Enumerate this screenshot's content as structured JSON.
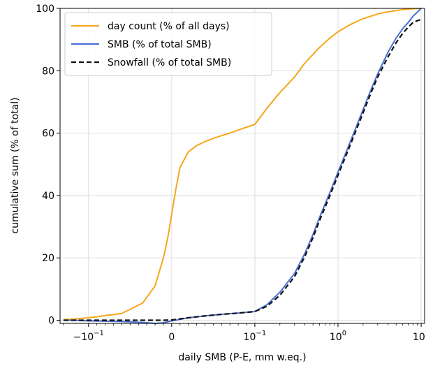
{
  "chart_data": {
    "type": "line",
    "title": "",
    "xlabel": "daily SMB (P-E, mm w.eq.)",
    "ylabel": "cumulative sum (% of total)",
    "x_scale": "symlog",
    "x_linthresh": 0.1,
    "xlim": [
      -0.22,
      11
    ],
    "ylim": [
      -1,
      100
    ],
    "grid": true,
    "legend_position": "top-left",
    "x_ticks": [
      {
        "value": -0.1,
        "base": "−10",
        "exp": "−1"
      },
      {
        "value": 0,
        "base": "0",
        "exp": ""
      },
      {
        "value": 0.1,
        "base": "10",
        "exp": "−1"
      },
      {
        "value": 1,
        "base": "10",
        "exp": "0"
      },
      {
        "value": 10,
        "base": "10",
        "exp": "1"
      }
    ],
    "y_ticks": [
      0,
      20,
      40,
      60,
      80,
      100
    ],
    "series": [
      {
        "name": "day count (% of all days)",
        "color": "#f5a71c",
        "dash": "solid",
        "x": [
          -0.2,
          -0.15,
          -0.1,
          -0.06,
          -0.035,
          -0.02,
          -0.01,
          -0.007,
          -0.004,
          0,
          0.005,
          0.01,
          0.015,
          0.02,
          0.03,
          0.04,
          0.05,
          0.06,
          0.07,
          0.08,
          0.09,
          0.1,
          0.14,
          0.2,
          0.3,
          0.4,
          0.6,
          0.8,
          1,
          1.4,
          2,
          3,
          4,
          5,
          6,
          8,
          10
        ],
        "y": [
          0.2,
          0.4,
          0.8,
          2.2,
          5.5,
          11,
          20,
          23.5,
          27.5,
          34,
          42,
          49,
          51.5,
          54,
          56,
          57.3,
          58.3,
          59.2,
          60,
          61,
          61.9,
          62.8,
          68,
          73,
          78,
          82.5,
          87.5,
          90.5,
          92.5,
          94.8,
          96.7,
          98.2,
          98.9,
          99.3,
          99.6,
          99.9,
          100
        ]
      },
      {
        "name": "SMB (% of total SMB)",
        "color": "#4a6fd6",
        "dash": "solid",
        "x": [
          -0.2,
          -0.15,
          -0.1,
          -0.06,
          -0.035,
          -0.02,
          -0.01,
          0,
          0.02,
          0.04,
          0.06,
          0.08,
          0.1,
          0.14,
          0.2,
          0.3,
          0.4,
          0.5,
          0.6,
          0.8,
          1,
          1.3,
          1.6,
          2,
          2.5,
          3,
          4,
          5,
          6,
          7,
          8,
          10
        ],
        "y": [
          0,
          0,
          -0.2,
          -0.4,
          -0.7,
          -1,
          -0.8,
          -0.2,
          0.8,
          1.4,
          1.9,
          2.3,
          2.8,
          5,
          9,
          15,
          21.5,
          27.5,
          33,
          41,
          47.5,
          55,
          61,
          67.5,
          74,
          79,
          86,
          90.5,
          93.5,
          95.5,
          97.5,
          100
        ]
      },
      {
        "name": "Snowfall (% of total SMB)",
        "color": "#111111",
        "dash": "dashed",
        "x": [
          -0.2,
          -0.15,
          -0.1,
          -0.06,
          -0.035,
          -0.02,
          -0.01,
          0,
          0.02,
          0.04,
          0.06,
          0.08,
          0.1,
          0.14,
          0.2,
          0.3,
          0.4,
          0.5,
          0.6,
          0.8,
          1,
          1.3,
          1.6,
          2,
          2.5,
          3,
          4,
          5,
          6,
          7,
          8,
          10
        ],
        "y": [
          0,
          0,
          0,
          0,
          0,
          0,
          0,
          0.1,
          0.8,
          1.4,
          1.9,
          2.3,
          2.8,
          4.5,
          8,
          14,
          20.5,
          26.5,
          32,
          40,
          46.5,
          54,
          60,
          66.5,
          73,
          78,
          84.5,
          89,
          92,
          94,
          95.5,
          96.5
        ]
      }
    ]
  }
}
